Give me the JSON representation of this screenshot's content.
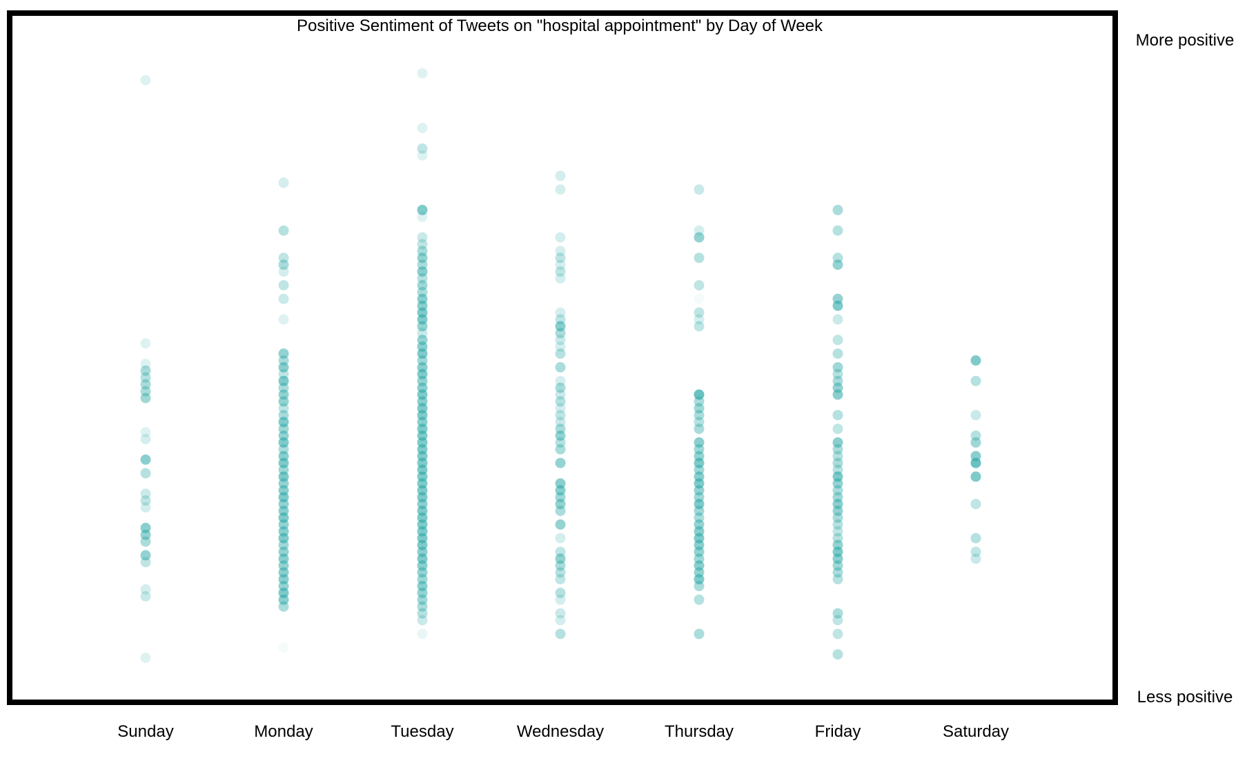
{
  "chart_data": {
    "type": "scatter",
    "title": "Positive Sentiment of Tweets on \"hospital appointment\" by Day of Week",
    "xlabel": "",
    "ylabel": "",
    "y_top_label": "More positive",
    "y_bottom_label": "Less positive",
    "ylim": [
      0,
      1
    ],
    "grid": false,
    "legend": "none",
    "categories": [
      "Sunday",
      "Monday",
      "Tuesday",
      "Wednesday",
      "Thursday",
      "Friday",
      "Saturday"
    ],
    "point_color": "#2aa8a6",
    "frame_color": "#000000",
    "series": [
      {
        "values": [
          [
            0.906,
            0.15
          ],
          [
            0.521,
            0.15
          ],
          [
            0.491,
            0.15
          ],
          [
            0.481,
            0.4
          ],
          [
            0.471,
            0.35
          ],
          [
            0.461,
            0.4
          ],
          [
            0.451,
            0.4
          ],
          [
            0.441,
            0.45
          ],
          [
            0.391,
            0.15
          ],
          [
            0.381,
            0.2
          ],
          [
            0.351,
            0.55
          ],
          [
            0.331,
            0.35
          ],
          [
            0.301,
            0.25
          ],
          [
            0.291,
            0.3
          ],
          [
            0.281,
            0.2
          ],
          [
            0.251,
            0.55
          ],
          [
            0.241,
            0.5
          ],
          [
            0.231,
            0.4
          ],
          [
            0.211,
            0.5
          ],
          [
            0.201,
            0.3
          ],
          [
            0.161,
            0.2
          ],
          [
            0.151,
            0.25
          ],
          [
            0.061,
            0.15
          ]
        ]
      },
      {
        "values": [
          [
            0.756,
            0.2
          ],
          [
            0.686,
            0.35
          ],
          [
            0.646,
            0.3
          ],
          [
            0.636,
            0.4
          ],
          [
            0.626,
            0.2
          ],
          [
            0.606,
            0.3
          ],
          [
            0.586,
            0.25
          ],
          [
            0.556,
            0.15
          ],
          [
            0.506,
            0.5
          ],
          [
            0.496,
            0.4
          ],
          [
            0.486,
            0.55
          ],
          [
            0.476,
            0.3
          ],
          [
            0.466,
            0.6
          ],
          [
            0.456,
            0.4
          ],
          [
            0.446,
            0.5
          ],
          [
            0.436,
            0.5
          ],
          [
            0.426,
            0.3
          ],
          [
            0.416,
            0.4
          ],
          [
            0.406,
            0.6
          ],
          [
            0.396,
            0.45
          ],
          [
            0.386,
            0.5
          ],
          [
            0.376,
            0.6
          ],
          [
            0.366,
            0.4
          ],
          [
            0.356,
            0.55
          ],
          [
            0.346,
            0.6
          ],
          [
            0.336,
            0.45
          ],
          [
            0.326,
            0.6
          ],
          [
            0.316,
            0.5
          ],
          [
            0.306,
            0.55
          ],
          [
            0.296,
            0.6
          ],
          [
            0.286,
            0.5
          ],
          [
            0.276,
            0.55
          ],
          [
            0.266,
            0.6
          ],
          [
            0.256,
            0.5
          ],
          [
            0.246,
            0.55
          ],
          [
            0.236,
            0.6
          ],
          [
            0.226,
            0.45
          ],
          [
            0.216,
            0.5
          ],
          [
            0.206,
            0.55
          ],
          [
            0.196,
            0.5
          ],
          [
            0.186,
            0.55
          ],
          [
            0.176,
            0.55
          ],
          [
            0.166,
            0.5
          ],
          [
            0.156,
            0.6
          ],
          [
            0.146,
            0.55
          ],
          [
            0.136,
            0.4
          ],
          [
            0.076,
            0.05
          ]
        ]
      },
      {
        "values": [
          [
            0.916,
            0.15
          ],
          [
            0.836,
            0.15
          ],
          [
            0.806,
            0.3
          ],
          [
            0.796,
            0.15
          ],
          [
            0.716,
            0.6
          ],
          [
            0.706,
            0.15
          ],
          [
            0.676,
            0.25
          ],
          [
            0.666,
            0.3
          ],
          [
            0.656,
            0.4
          ],
          [
            0.646,
            0.5
          ],
          [
            0.636,
            0.4
          ],
          [
            0.626,
            0.55
          ],
          [
            0.616,
            0.35
          ],
          [
            0.606,
            0.45
          ],
          [
            0.596,
            0.4
          ],
          [
            0.586,
            0.55
          ],
          [
            0.576,
            0.55
          ],
          [
            0.566,
            0.6
          ],
          [
            0.556,
            0.6
          ],
          [
            0.546,
            0.5
          ],
          [
            0.536,
            0.25
          ],
          [
            0.526,
            0.5
          ],
          [
            0.516,
            0.55
          ],
          [
            0.506,
            0.6
          ],
          [
            0.496,
            0.45
          ],
          [
            0.486,
            0.55
          ],
          [
            0.476,
            0.6
          ],
          [
            0.466,
            0.5
          ],
          [
            0.456,
            0.55
          ],
          [
            0.446,
            0.6
          ],
          [
            0.436,
            0.55
          ],
          [
            0.426,
            0.6
          ],
          [
            0.416,
            0.6
          ],
          [
            0.406,
            0.55
          ],
          [
            0.396,
            0.6
          ],
          [
            0.386,
            0.6
          ],
          [
            0.376,
            0.6
          ],
          [
            0.366,
            0.6
          ],
          [
            0.356,
            0.6
          ],
          [
            0.346,
            0.6
          ],
          [
            0.336,
            0.6
          ],
          [
            0.326,
            0.6
          ],
          [
            0.316,
            0.6
          ],
          [
            0.306,
            0.6
          ],
          [
            0.296,
            0.6
          ],
          [
            0.286,
            0.55
          ],
          [
            0.276,
            0.6
          ],
          [
            0.266,
            0.6
          ],
          [
            0.256,
            0.6
          ],
          [
            0.246,
            0.6
          ],
          [
            0.236,
            0.6
          ],
          [
            0.226,
            0.6
          ],
          [
            0.216,
            0.55
          ],
          [
            0.206,
            0.6
          ],
          [
            0.196,
            0.55
          ],
          [
            0.186,
            0.5
          ],
          [
            0.176,
            0.45
          ],
          [
            0.166,
            0.55
          ],
          [
            0.156,
            0.5
          ],
          [
            0.146,
            0.45
          ],
          [
            0.136,
            0.4
          ],
          [
            0.126,
            0.35
          ],
          [
            0.116,
            0.25
          ],
          [
            0.096,
            0.1
          ]
        ]
      },
      {
        "values": [
          [
            0.766,
            0.2
          ],
          [
            0.746,
            0.2
          ],
          [
            0.676,
            0.2
          ],
          [
            0.656,
            0.2
          ],
          [
            0.646,
            0.3
          ],
          [
            0.636,
            0.2
          ],
          [
            0.626,
            0.3
          ],
          [
            0.616,
            0.2
          ],
          [
            0.566,
            0.2
          ],
          [
            0.556,
            0.3
          ],
          [
            0.546,
            0.55
          ],
          [
            0.536,
            0.4
          ],
          [
            0.526,
            0.25
          ],
          [
            0.516,
            0.2
          ],
          [
            0.506,
            0.35
          ],
          [
            0.486,
            0.4
          ],
          [
            0.466,
            0.2
          ],
          [
            0.456,
            0.4
          ],
          [
            0.446,
            0.25
          ],
          [
            0.436,
            0.35
          ],
          [
            0.426,
            0.2
          ],
          [
            0.416,
            0.3
          ],
          [
            0.406,
            0.25
          ],
          [
            0.396,
            0.4
          ],
          [
            0.386,
            0.5
          ],
          [
            0.376,
            0.35
          ],
          [
            0.366,
            0.4
          ],
          [
            0.346,
            0.5
          ],
          [
            0.316,
            0.55
          ],
          [
            0.306,
            0.55
          ],
          [
            0.296,
            0.45
          ],
          [
            0.286,
            0.5
          ],
          [
            0.276,
            0.4
          ],
          [
            0.256,
            0.5
          ],
          [
            0.236,
            0.2
          ],
          [
            0.216,
            0.3
          ],
          [
            0.206,
            0.5
          ],
          [
            0.196,
            0.4
          ],
          [
            0.186,
            0.35
          ],
          [
            0.176,
            0.3
          ],
          [
            0.156,
            0.35
          ],
          [
            0.146,
            0.2
          ],
          [
            0.126,
            0.25
          ],
          [
            0.116,
            0.2
          ],
          [
            0.096,
            0.35
          ]
        ]
      },
      {
        "values": [
          [
            0.746,
            0.25
          ],
          [
            0.686,
            0.2
          ],
          [
            0.676,
            0.5
          ],
          [
            0.646,
            0.35
          ],
          [
            0.606,
            0.3
          ],
          [
            0.586,
            0.05
          ],
          [
            0.566,
            0.3
          ],
          [
            0.556,
            0.2
          ],
          [
            0.546,
            0.3
          ],
          [
            0.446,
            0.7
          ],
          [
            0.436,
            0.4
          ],
          [
            0.426,
            0.45
          ],
          [
            0.416,
            0.4
          ],
          [
            0.406,
            0.35
          ],
          [
            0.396,
            0.4
          ],
          [
            0.376,
            0.55
          ],
          [
            0.366,
            0.45
          ],
          [
            0.356,
            0.5
          ],
          [
            0.346,
            0.6
          ],
          [
            0.336,
            0.45
          ],
          [
            0.326,
            0.55
          ],
          [
            0.316,
            0.6
          ],
          [
            0.306,
            0.5
          ],
          [
            0.296,
            0.45
          ],
          [
            0.286,
            0.6
          ],
          [
            0.276,
            0.45
          ],
          [
            0.266,
            0.4
          ],
          [
            0.256,
            0.5
          ],
          [
            0.246,
            0.55
          ],
          [
            0.236,
            0.6
          ],
          [
            0.226,
            0.55
          ],
          [
            0.216,
            0.5
          ],
          [
            0.206,
            0.45
          ],
          [
            0.196,
            0.55
          ],
          [
            0.186,
            0.5
          ],
          [
            0.176,
            0.6
          ],
          [
            0.166,
            0.4
          ],
          [
            0.146,
            0.35
          ],
          [
            0.096,
            0.4
          ]
        ]
      },
      {
        "values": [
          [
            0.716,
            0.4
          ],
          [
            0.686,
            0.35
          ],
          [
            0.646,
            0.35
          ],
          [
            0.636,
            0.5
          ],
          [
            0.586,
            0.5
          ],
          [
            0.576,
            0.6
          ],
          [
            0.556,
            0.25
          ],
          [
            0.526,
            0.3
          ],
          [
            0.506,
            0.35
          ],
          [
            0.486,
            0.45
          ],
          [
            0.476,
            0.35
          ],
          [
            0.466,
            0.4
          ],
          [
            0.456,
            0.5
          ],
          [
            0.446,
            0.55
          ],
          [
            0.416,
            0.35
          ],
          [
            0.396,
            0.3
          ],
          [
            0.376,
            0.55
          ],
          [
            0.366,
            0.4
          ],
          [
            0.356,
            0.35
          ],
          [
            0.346,
            0.4
          ],
          [
            0.336,
            0.35
          ],
          [
            0.326,
            0.6
          ],
          [
            0.316,
            0.5
          ],
          [
            0.306,
            0.4
          ],
          [
            0.296,
            0.45
          ],
          [
            0.286,
            0.55
          ],
          [
            0.276,
            0.5
          ],
          [
            0.266,
            0.4
          ],
          [
            0.256,
            0.35
          ],
          [
            0.246,
            0.3
          ],
          [
            0.236,
            0.35
          ],
          [
            0.226,
            0.5
          ],
          [
            0.216,
            0.6
          ],
          [
            0.206,
            0.55
          ],
          [
            0.196,
            0.45
          ],
          [
            0.186,
            0.4
          ],
          [
            0.176,
            0.35
          ],
          [
            0.126,
            0.4
          ],
          [
            0.116,
            0.3
          ],
          [
            0.096,
            0.3
          ],
          [
            0.066,
            0.35
          ]
        ]
      },
      {
        "values": [
          [
            0.496,
            0.6
          ],
          [
            0.466,
            0.35
          ],
          [
            0.416,
            0.25
          ],
          [
            0.386,
            0.35
          ],
          [
            0.376,
            0.45
          ],
          [
            0.356,
            0.55
          ],
          [
            0.346,
            0.7
          ],
          [
            0.326,
            0.6
          ],
          [
            0.286,
            0.3
          ],
          [
            0.236,
            0.35
          ],
          [
            0.216,
            0.3
          ],
          [
            0.206,
            0.25
          ]
        ]
      }
    ]
  }
}
